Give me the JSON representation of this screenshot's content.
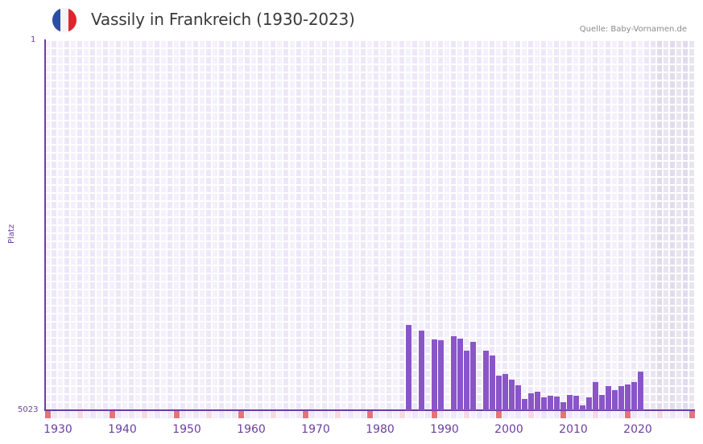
{
  "header": {
    "title": "Vassily in Frankreich (1930-2023)",
    "source": "Quelle: Baby-Vornamen.de",
    "flag": {
      "country": "France",
      "colors": [
        "#2d4fa0",
        "#f4f4f6",
        "#e2232c"
      ]
    }
  },
  "axes": {
    "y_title": "Platz",
    "y_top_label": "1",
    "y_bottom_label": "5023",
    "x_labels": [
      "1930",
      "1940",
      "1950",
      "1960",
      "1970",
      "1980",
      "1990",
      "2000",
      "2010",
      "2020"
    ]
  },
  "colors": {
    "bar": "#8a55c8",
    "axis": "#6b3fa0",
    "grid_light": "#f4f1fc",
    "grid_dark": "#ede7f8",
    "future_light": "#e8e5f0",
    "future_dark": "#e1dced",
    "decade_marker": "#e5737b",
    "half_decade_marker": "#f6d9e2"
  },
  "chart_data": {
    "type": "bar",
    "title": "Vassily in Frankreich (1930-2023)",
    "subtitle": "Quelle: Baby-Vornamen.de",
    "xlabel": "",
    "ylabel": "Platz",
    "ylim": [
      5023,
      1
    ],
    "y_inverted": true,
    "x_range": [
      1930,
      2030
    ],
    "data_range": [
      1930,
      2023
    ],
    "grid": true,
    "legend": null,
    "x": [
      1986,
      1988,
      1990,
      1991,
      1993,
      1994,
      1995,
      1996,
      1998,
      1999,
      2000,
      2001,
      2002,
      2003,
      2004,
      2005,
      2006,
      2007,
      2008,
      2009,
      2010,
      2011,
      2012,
      2013,
      2014,
      2015,
      2016,
      2017,
      2018,
      2019,
      2020,
      2021,
      2022
    ],
    "values": [
      3868,
      3944,
      4064,
      4075,
      4021,
      4053,
      4217,
      4097,
      4217,
      4282,
      4555,
      4533,
      4609,
      4685,
      4870,
      4794,
      4772,
      4849,
      4827,
      4838,
      4914,
      4816,
      4827,
      4958,
      4849,
      4642,
      4816,
      4696,
      4751,
      4696,
      4674,
      4642,
      4500
    ]
  }
}
